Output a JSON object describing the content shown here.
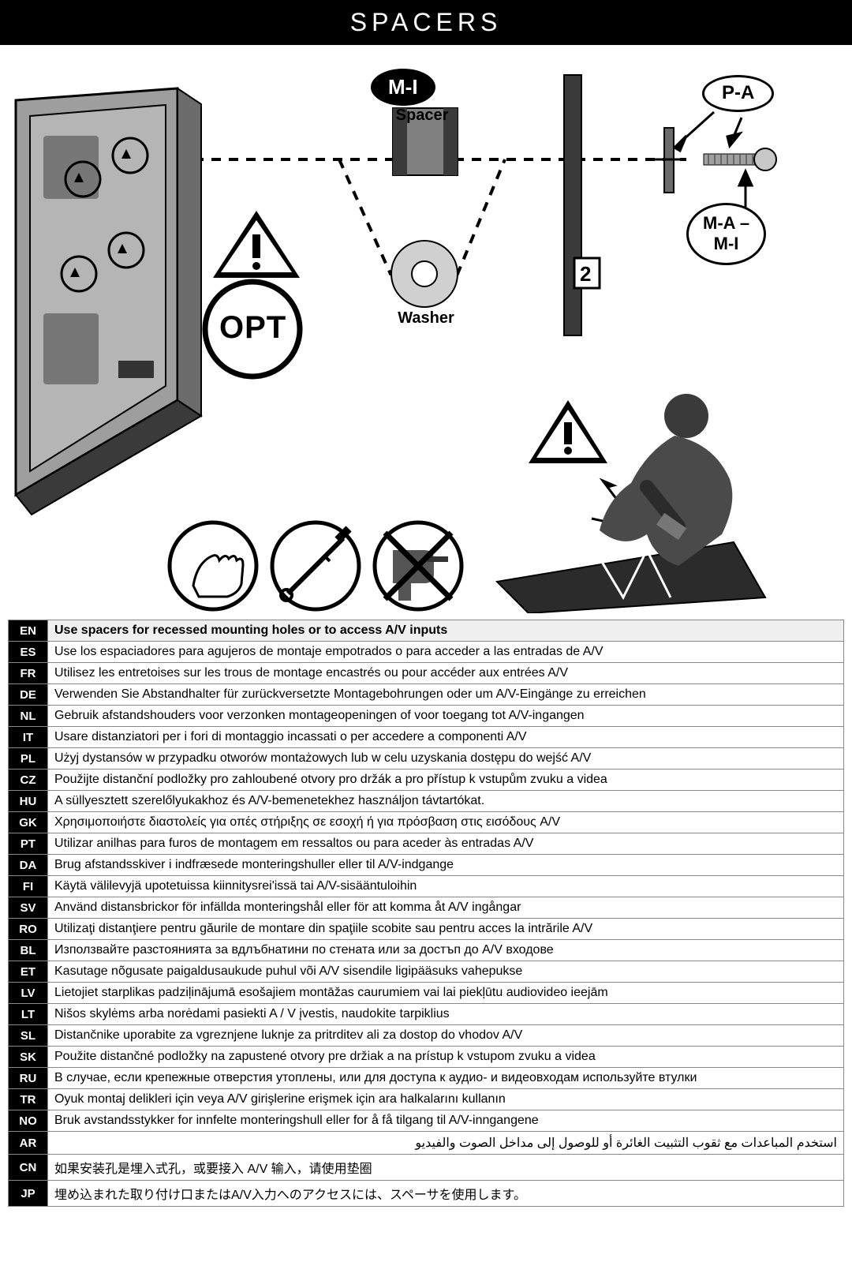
{
  "title": "SPACERS",
  "labels": {
    "spacer": "Spacer",
    "washer": "Washer",
    "opt": "OPT",
    "mi": "M-I",
    "pa": "P-A",
    "ma_mi": "M-A –\nM-I",
    "step": "2"
  },
  "colors": {
    "black": "#000000",
    "white": "#ffffff",
    "grey_panel": "#9e9e9e",
    "grey_dark": "#6b6b6b",
    "grey_light": "#d0d0d0",
    "spacer_fill": "#808080"
  },
  "instructions": [
    {
      "lang": "EN",
      "text": "Use spacers for recessed mounting holes or to access A/V inputs",
      "bold": true
    },
    {
      "lang": "ES",
      "text": "Use los espaciadores para agujeros de montaje empotrados o para acceder a las entradas de A/V"
    },
    {
      "lang": "FR",
      "text": "Utilisez les entretoises sur les trous de montage encastrés ou pour accéder aux entrées A/V"
    },
    {
      "lang": "DE",
      "text": "Verwenden Sie Abstandhalter für zurückversetzte Montagebohrungen oder um A/V-Eingänge zu erreichen"
    },
    {
      "lang": "NL",
      "text": "Gebruik afstandshouders voor verzonken montageopeningen of voor toegang tot A/V-ingangen"
    },
    {
      "lang": "IT",
      "text": "Usare distanziatori per i fori di montaggio incassati o per accedere a componenti A/V"
    },
    {
      "lang": "PL",
      "text": "Użyj dystansów w przypadku otworów montażowych lub w celu uzyskania dostępu do wejść A/V"
    },
    {
      "lang": "CZ",
      "text": "Použijte distanční podložky pro zahloubené otvory pro držák a pro přístup k vstupům zvuku a videa"
    },
    {
      "lang": "HU",
      "text": "A süllyesztett szerelőlyukakhoz és A/V-bemenetekhez használjon távtartókat."
    },
    {
      "lang": "GK",
      "text": "Χρησιμοποιήστε διαστολείς για οπές στήριξης σε εσοχή ή για πρόσβαση στις εισόδους A/V"
    },
    {
      "lang": "PT",
      "text": "Utilizar anilhas para furos de montagem em ressaltos ou para aceder às entradas A/V"
    },
    {
      "lang": "DA",
      "text": "Brug afstandsskiver i indfræsede monteringshuller eller til A/V-indgange"
    },
    {
      "lang": "FI",
      "text": "Käytä välilevyjä upotetuissa kiinnitysrei'issä tai A/V-sisääntuloihin"
    },
    {
      "lang": "SV",
      "text": "Använd distansbrickor för infällda monteringshål eller för att komma åt A/V ingångar"
    },
    {
      "lang": "RO",
      "text": "Utilizaţi distanţiere pentru găurile de montare din spaţiile scobite sau pentru acces la intrările A/V"
    },
    {
      "lang": "BL",
      "text": "Използвайте разстоянията за вдлъбнатини по стената или за достъп до A/V входове"
    },
    {
      "lang": "ET",
      "text": "Kasutage nõgusate paigaldusaukude puhul või A/V sisendile ligipääsuks vahepukse"
    },
    {
      "lang": "LV",
      "text": "Lietojiet starplikas padziļinājumā esošajiem montāžas caurumiem vai lai piekļūtu audiovideo ieejām"
    },
    {
      "lang": "LT",
      "text": "Nišos skylėms arba norėdami pasiekti A / V įvestis, naudokite tarpiklius"
    },
    {
      "lang": "SL",
      "text": "Distančnike uporabite za vgreznjene luknje za pritrditev ali za dostop do vhodov A/V"
    },
    {
      "lang": "SK",
      "text": "Použite distančné podložky na zapustené otvory pre držiak a na prístup k vstupom zvuku a videa"
    },
    {
      "lang": "RU",
      "text": "В случае, если крепежные отверстия утоплены, или для доступа к аудио- и видеовходам используйте втулки"
    },
    {
      "lang": "TR",
      "text": "Oyuk montaj delikleri için veya A/V girişlerine erişmek için ara halkalarını kullanın"
    },
    {
      "lang": "NO",
      "text": "Bruk avstandsstykker for innfelte monteringshull eller for å få tilgang til A/V-inngangene"
    },
    {
      "lang": "AR",
      "text": "استخدم المباعدات مع ثقوب التثبيت الغائرة أو للوصول إلى مداخل الصوت والفيديو",
      "rtl": true
    },
    {
      "lang": "CN",
      "text": "如果安装孔是埋入式孔，或要接入 A/V 输入，请使用垫圈"
    },
    {
      "lang": "JP",
      "text": "埋め込まれた取り付け口またはA/V入力へのアクセスには、スペーサを使用します。"
    }
  ]
}
